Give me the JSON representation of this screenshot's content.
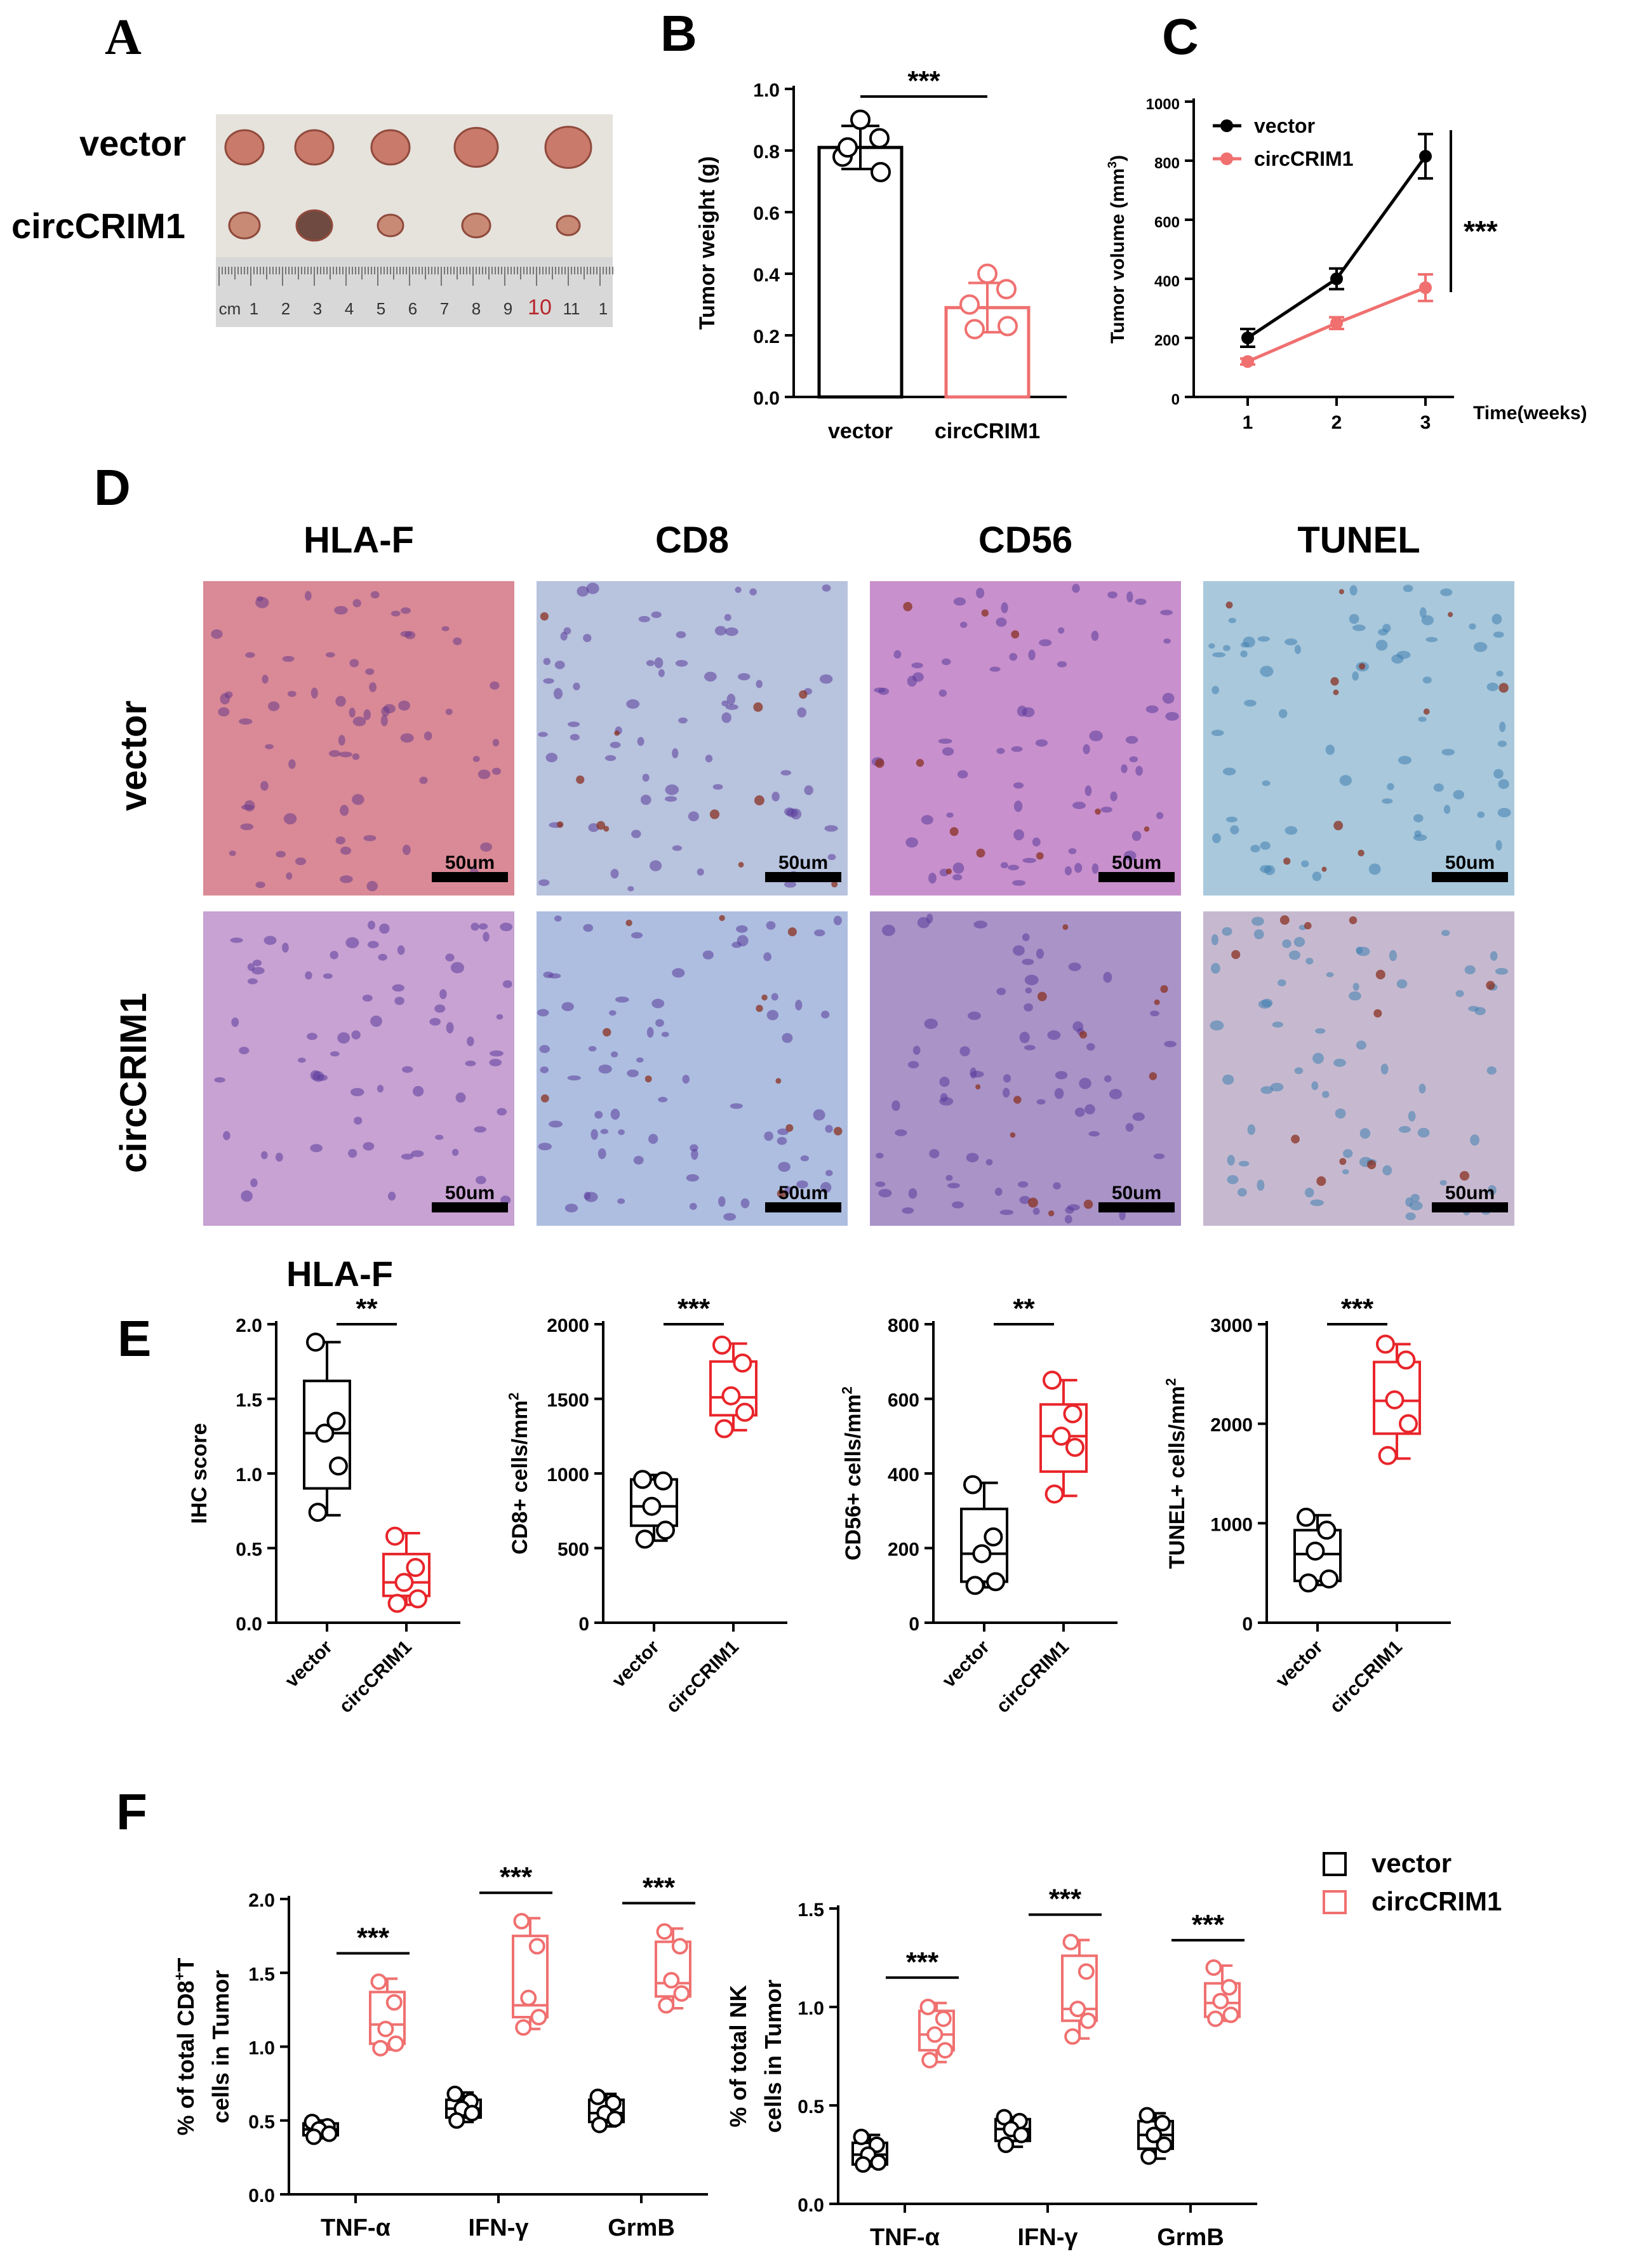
{
  "colors": {
    "vector": "#000000",
    "circ_pink": "#f07070",
    "circ_red": "#e8252a",
    "photo_bg": "#e6e2dc",
    "ruler": "#d8d8d8"
  },
  "panels": {
    "A": {
      "letter": "A",
      "row_labels": [
        "vector",
        "circCRIM1"
      ],
      "ruler_marks": [
        "cm",
        "1",
        "2",
        "3",
        "4",
        "5",
        "6",
        "7",
        "8",
        "9",
        "10",
        "11",
        "1"
      ]
    },
    "B": {
      "letter": "B"
    },
    "C": {
      "letter": "C"
    },
    "D": {
      "letter": "D"
    },
    "E": {
      "letter": "E"
    },
    "F": {
      "letter": "F"
    }
  },
  "panel_D": {
    "columns": [
      "HLA-F",
      "CD8",
      "CD56",
      "TUNEL"
    ],
    "rows": [
      "vector",
      "circCRIM1"
    ],
    "scale_bar": "50um",
    "tints": [
      [
        "#d98a96",
        "#b8c3de",
        "#c890cc",
        "#a9c8dc"
      ],
      [
        "#c7a2d2",
        "#aebee0",
        "#a993c7",
        "#c6b9cf"
      ]
    ]
  },
  "chart_data": [
    {
      "id": "B",
      "type": "bar",
      "categories": [
        "vector",
        "circCRIM1"
      ],
      "values": [
        0.81,
        0.29
      ],
      "errors": [
        0.07,
        0.08
      ],
      "points": [
        [
          0.9,
          0.84,
          0.78,
          0.73,
          0.81
        ],
        [
          0.4,
          0.35,
          0.3,
          0.23,
          0.22
        ]
      ],
      "ylabel": "Tumor weight (g)",
      "ylim": [
        0,
        1.0
      ],
      "yticks": [
        "0.0",
        "0.2",
        "0.4",
        "0.6",
        "0.8",
        "1.0"
      ],
      "significance": "***"
    },
    {
      "id": "C",
      "type": "line",
      "x": [
        1,
        2,
        3
      ],
      "xticks": [
        "1",
        "2",
        "3"
      ],
      "xlabel": "Time(weeks)",
      "ylabel": "Tumor volume (mm",
      "ylabel_sup": "3",
      "ylabel_close": ")",
      "ylim": [
        0,
        1000
      ],
      "yticks": [
        "0",
        "200",
        "400",
        "600",
        "800",
        "1000"
      ],
      "series": [
        {
          "name": "vector",
          "values": [
            200,
            400,
            815
          ],
          "errors": [
            30,
            35,
            75
          ]
        },
        {
          "name": "circCRIM1",
          "values": [
            120,
            250,
            370
          ],
          "errors": [
            10,
            20,
            45
          ]
        }
      ],
      "significance": "***",
      "legend": "top-left"
    },
    {
      "id": "E1",
      "type": "box",
      "title": "HLA-F",
      "categories": [
        "vector",
        "circCRIM1"
      ],
      "ylabel": "IHC score",
      "ylim": [
        0,
        2.0
      ],
      "yticks": [
        "0.0",
        "0.5",
        "1.0",
        "1.5",
        "2.0"
      ],
      "boxes": [
        {
          "min": 0.72,
          "q1": 0.9,
          "median": 1.27,
          "q3": 1.62,
          "max": 1.88,
          "points": [
            1.88,
            1.35,
            1.27,
            1.05,
            0.74
          ]
        },
        {
          "min": 0.12,
          "q1": 0.18,
          "median": 0.27,
          "q3": 0.46,
          "max": 0.6,
          "points": [
            0.58,
            0.37,
            0.27,
            0.16,
            0.13
          ]
        }
      ],
      "significance": "**"
    },
    {
      "id": "E2",
      "type": "box",
      "categories": [
        "vector",
        "circCRIM1"
      ],
      "ylabel": "CD8+ cells/mm",
      "ylabel_sup": "2",
      "ylim": [
        0,
        2000
      ],
      "yticks": [
        "0",
        "500",
        "1000",
        "1500",
        "2000"
      ],
      "boxes": [
        {
          "min": 550,
          "q1": 650,
          "median": 780,
          "q3": 960,
          "max": 990,
          "points": [
            960,
            950,
            780,
            620,
            560
          ]
        },
        {
          "min": 1290,
          "q1": 1390,
          "median": 1510,
          "q3": 1750,
          "max": 1870,
          "points": [
            1860,
            1740,
            1520,
            1410,
            1300
          ]
        }
      ],
      "significance": "***"
    },
    {
      "id": "E3",
      "type": "box",
      "categories": [
        "vector",
        "circCRIM1"
      ],
      "ylabel": "CD56+ cells/mm",
      "ylabel_sup": "2",
      "ylim": [
        0,
        800
      ],
      "yticks": [
        "0",
        "200",
        "400",
        "600",
        "800"
      ],
      "boxes": [
        {
          "min": 95,
          "q1": 110,
          "median": 185,
          "q3": 305,
          "max": 375,
          "points": [
            370,
            230,
            185,
            110,
            100
          ]
        },
        {
          "min": 340,
          "q1": 405,
          "median": 500,
          "q3": 585,
          "max": 650,
          "points": [
            650,
            560,
            500,
            470,
            345
          ]
        }
      ],
      "significance": "**"
    },
    {
      "id": "E4",
      "type": "box",
      "categories": [
        "vector",
        "circCRIM1"
      ],
      "ylabel": "TUNEL+ cells/mm",
      "ylabel_sup": "2",
      "ylim": [
        0,
        3000
      ],
      "yticks": [
        "0",
        "1000",
        "2000",
        "3000"
      ],
      "boxes": [
        {
          "min": 380,
          "q1": 420,
          "median": 690,
          "q3": 930,
          "max": 1080,
          "points": [
            1060,
            930,
            720,
            440,
            400
          ]
        },
        {
          "min": 1650,
          "q1": 1900,
          "median": 2230,
          "q3": 2620,
          "max": 2800,
          "points": [
            2800,
            2640,
            2240,
            2000,
            1680
          ]
        }
      ],
      "significance": "***"
    },
    {
      "id": "F1",
      "type": "box",
      "categories": [
        "TNF-α",
        "IFN-γ",
        "GrmB"
      ],
      "legend": [
        "vector",
        "circCRIM1"
      ],
      "ylabel_1a": "% of total CD8",
      "ylabel_1sup": "+",
      "ylabel_1b": "T",
      "ylabel_2": "cells in Tumor",
      "ylim": [
        0,
        2.0
      ],
      "yticks": [
        "0.0",
        "0.5",
        "1.0",
        "1.5",
        "2.0"
      ],
      "groups": [
        {
          "vector": {
            "min": 0.38,
            "q1": 0.4,
            "median": 0.44,
            "q3": 0.48,
            "max": 0.5,
            "points": [
              0.49,
              0.46,
              0.44,
              0.41,
              0.39
            ]
          },
          "circ": {
            "min": 0.98,
            "q1": 1.02,
            "median": 1.15,
            "q3": 1.37,
            "max": 1.46,
            "points": [
              1.44,
              1.3,
              1.12,
              1.02,
              0.99
            ]
          },
          "sig": "***"
        },
        {
          "vector": {
            "min": 0.49,
            "q1": 0.52,
            "median": 0.58,
            "q3": 0.64,
            "max": 0.69,
            "points": [
              0.68,
              0.63,
              0.58,
              0.55,
              0.5
            ]
          },
          "circ": {
            "min": 1.12,
            "q1": 1.2,
            "median": 1.28,
            "q3": 1.75,
            "max": 1.87,
            "points": [
              1.85,
              1.68,
              1.33,
              1.2,
              1.13
            ]
          },
          "sig": "***"
        },
        {
          "vector": {
            "min": 0.46,
            "q1": 0.49,
            "median": 0.55,
            "q3": 0.64,
            "max": 0.68,
            "points": [
              0.66,
              0.62,
              0.55,
              0.51,
              0.47
            ]
          },
          "circ": {
            "min": 1.26,
            "q1": 1.34,
            "median": 1.43,
            "q3": 1.71,
            "max": 1.8,
            "points": [
              1.78,
              1.68,
              1.45,
              1.36,
              1.28
            ]
          },
          "sig": "***"
        }
      ]
    },
    {
      "id": "F2",
      "type": "box",
      "categories": [
        "TNF-α",
        "IFN-γ",
        "GrmB"
      ],
      "ylabel_1": "% of total NK",
      "ylabel_2": "cells in Tumor",
      "ylim": [
        0,
        1.5
      ],
      "yticks": [
        "0.0",
        "0.5",
        "1.0",
        "1.5"
      ],
      "groups": [
        {
          "vector": {
            "min": 0.19,
            "q1": 0.2,
            "median": 0.25,
            "q3": 0.31,
            "max": 0.35,
            "points": [
              0.34,
              0.3,
              0.25,
              0.21,
              0.2
            ]
          },
          "circ": {
            "min": 0.72,
            "q1": 0.78,
            "median": 0.86,
            "q3": 0.98,
            "max": 1.02,
            "points": [
              1.0,
              0.94,
              0.86,
              0.78,
              0.73
            ]
          },
          "sig": "***"
        },
        {
          "vector": {
            "min": 0.29,
            "q1": 0.32,
            "median": 0.38,
            "q3": 0.43,
            "max": 0.44,
            "points": [
              0.44,
              0.42,
              0.38,
              0.35,
              0.3
            ]
          },
          "circ": {
            "min": 0.84,
            "q1": 0.93,
            "median": 0.99,
            "q3": 1.26,
            "max": 1.34,
            "points": [
              1.33,
              1.18,
              0.99,
              0.93,
              0.85
            ]
          },
          "sig": "***"
        },
        {
          "vector": {
            "min": 0.23,
            "q1": 0.28,
            "median": 0.35,
            "q3": 0.42,
            "max": 0.46,
            "points": [
              0.45,
              0.41,
              0.35,
              0.3,
              0.24
            ]
          },
          "circ": {
            "min": 0.93,
            "q1": 0.95,
            "median": 1.02,
            "q3": 1.12,
            "max": 1.21,
            "points": [
              1.2,
              1.1,
              1.03,
              0.96,
              0.94
            ]
          },
          "sig": "***"
        }
      ]
    }
  ]
}
